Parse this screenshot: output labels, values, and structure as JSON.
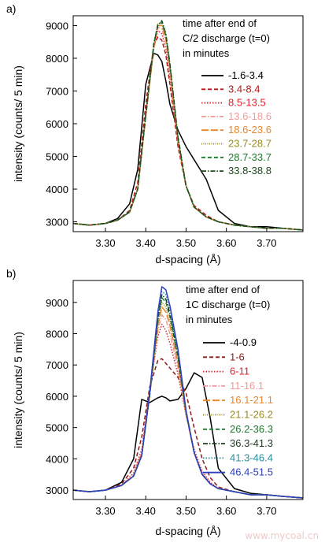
{
  "watermark": "www.mycoal.cn",
  "chart_data": [
    {
      "panel_label": "a)",
      "type": "line",
      "xlabel": "d-spacing (Å)",
      "ylabel": "intensity (counts/ 5 min)",
      "xlim": [
        3.22,
        3.79
      ],
      "ylim": [
        2700,
        9300
      ],
      "xticks": [
        3.3,
        3.4,
        3.5,
        3.6,
        3.7
      ],
      "xtick_labels": [
        "3.30",
        "3.40",
        "3.50",
        "3.60",
        "3.70"
      ],
      "yticks": [
        3000,
        4000,
        5000,
        6000,
        7000,
        8000,
        9000
      ],
      "ytick_labels": [
        "3000",
        "4000",
        "5000",
        "6000",
        "7000",
        "8000",
        "9000"
      ],
      "legend_title": [
        "time after end of",
        "C/2 discharge (t=0)",
        "in minutes"
      ],
      "legend_position": "right",
      "grid": false,
      "x": [
        3.22,
        3.26,
        3.3,
        3.33,
        3.36,
        3.38,
        3.4,
        3.42,
        3.43,
        3.44,
        3.45,
        3.46,
        3.48,
        3.5,
        3.52,
        3.55,
        3.58,
        3.62,
        3.66,
        3.7,
        3.74,
        3.79
      ],
      "series": [
        {
          "name": "-1.6-3.4",
          "color": "#000000",
          "dash": "solid",
          "values": [
            2950,
            2900,
            2950,
            3100,
            3550,
            4600,
            7200,
            8150,
            8100,
            7900,
            7300,
            6600,
            5800,
            5300,
            4900,
            4300,
            3350,
            2950,
            2850,
            2850,
            2800,
            2750
          ]
        },
        {
          "name": "3.4-8.4",
          "color": "#b01a1a",
          "dash": "dash",
          "values": [
            2950,
            2900,
            2950,
            3050,
            3350,
            4200,
            6600,
            8400,
            8650,
            8550,
            8100,
            7200,
            5300,
            4100,
            3500,
            3200,
            3000,
            2900,
            2850,
            2800,
            2800,
            2750
          ]
        },
        {
          "name": "8.5-13.5",
          "color": "#e0202a",
          "dash": "dot",
          "values": [
            2950,
            2900,
            2950,
            3050,
            3300,
            4000,
            6300,
            8300,
            8850,
            8750,
            8300,
            7400,
            5400,
            4100,
            3450,
            3150,
            3000,
            2900,
            2850,
            2800,
            2800,
            2750
          ]
        },
        {
          "name": "13.6-18.6",
          "color": "#f29a9a",
          "dash": "dashdot",
          "values": [
            2950,
            2900,
            2950,
            3050,
            3300,
            4000,
            6200,
            8300,
            8950,
            8900,
            8500,
            7600,
            5500,
            4100,
            3450,
            3150,
            3000,
            2900,
            2850,
            2800,
            2800,
            2750
          ]
        },
        {
          "name": "18.6-23.6",
          "color": "#e8862a",
          "dash": "longdash",
          "values": [
            2950,
            2900,
            2950,
            3050,
            3300,
            4000,
            6200,
            8350,
            9000,
            9000,
            8600,
            7700,
            5500,
            4100,
            3450,
            3150,
            3000,
            2900,
            2850,
            2800,
            2800,
            2750
          ]
        },
        {
          "name": "23.7-28.7",
          "color": "#9a8a1e",
          "dash": "finedot",
          "values": [
            2950,
            2900,
            2950,
            3050,
            3300,
            4000,
            6250,
            8400,
            9050,
            9050,
            8650,
            7750,
            5550,
            4100,
            3450,
            3150,
            3000,
            2900,
            2850,
            2800,
            2800,
            2750
          ]
        },
        {
          "name": "28.7-33.7",
          "color": "#1e7a2e",
          "dash": "dash",
          "values": [
            2950,
            2900,
            2950,
            3050,
            3300,
            4000,
            6250,
            8450,
            9050,
            9100,
            8700,
            7800,
            5550,
            4100,
            3450,
            3150,
            3000,
            2900,
            2850,
            2800,
            2800,
            2750
          ]
        },
        {
          "name": "33.8-38.8",
          "color": "#1e4a1e",
          "dash": "dashdot",
          "values": [
            2950,
            2900,
            2950,
            3050,
            3300,
            4000,
            6250,
            8450,
            9000,
            9150,
            8750,
            7850,
            5600,
            4100,
            3450,
            3150,
            3000,
            2900,
            2850,
            2800,
            2800,
            2750
          ]
        }
      ]
    },
    {
      "panel_label": "b)",
      "type": "line",
      "xlabel": "d-spacing (Å)",
      "ylabel": "intensity (counts/ 5 min)",
      "xlim": [
        3.22,
        3.79
      ],
      "ylim": [
        2700,
        9700
      ],
      "xticks": [
        3.3,
        3.4,
        3.5,
        3.6,
        3.7
      ],
      "xtick_labels": [
        "3.30",
        "3.40",
        "3.50",
        "3.60",
        "3.70"
      ],
      "yticks": [
        3000,
        4000,
        5000,
        6000,
        7000,
        8000,
        9000
      ],
      "ytick_labels": [
        "3000",
        "4000",
        "5000",
        "6000",
        "7000",
        "8000",
        "9000"
      ],
      "legend_title": [
        "time after end of",
        "1C discharge (t=0)",
        "in minutes"
      ],
      "legend_position": "right",
      "grid": false,
      "x": [
        3.22,
        3.26,
        3.3,
        3.34,
        3.37,
        3.39,
        3.41,
        3.43,
        3.44,
        3.45,
        3.46,
        3.48,
        3.5,
        3.52,
        3.54,
        3.56,
        3.58,
        3.62,
        3.66,
        3.7,
        3.74,
        3.79
      ],
      "series": [
        {
          "name": "-4-0.9",
          "color": "#000000",
          "dash": "solid",
          "values": [
            3000,
            2950,
            3000,
            3250,
            4000,
            5900,
            5800,
            5950,
            6000,
            5950,
            5850,
            5900,
            6250,
            6750,
            6600,
            5300,
            3700,
            3050,
            2900,
            2850,
            2800,
            2750
          ]
        },
        {
          "name": "1-6",
          "color": "#8a1c1c",
          "dash": "dash",
          "values": [
            3000,
            2950,
            3000,
            3200,
            3700,
            4700,
            6300,
            7150,
            7200,
            7050,
            6900,
            6600,
            6100,
            5000,
            4000,
            3400,
            3100,
            2950,
            2850,
            2850,
            2800,
            2750
          ]
        },
        {
          "name": "6-11",
          "color": "#e0202a",
          "dash": "dot",
          "values": [
            3000,
            2950,
            3000,
            3150,
            3550,
            4300,
            6200,
            7900,
            8300,
            8100,
            7700,
            6700,
            5400,
            4300,
            3600,
            3250,
            3050,
            2950,
            2850,
            2850,
            2800,
            2750
          ]
        },
        {
          "name": "11-16.1",
          "color": "#f29a9a",
          "dash": "dashdot",
          "values": [
            3000,
            2950,
            3000,
            3150,
            3500,
            4200,
            6100,
            8100,
            8600,
            8450,
            8000,
            6900,
            5400,
            4200,
            3550,
            3200,
            3050,
            2950,
            2850,
            2850,
            2800,
            2750
          ]
        },
        {
          "name": "16.1-21.1",
          "color": "#e8862a",
          "dash": "longdash",
          "values": [
            3000,
            2950,
            3000,
            3150,
            3450,
            4150,
            6050,
            8250,
            8850,
            8700,
            8250,
            7050,
            5450,
            4200,
            3500,
            3200,
            3050,
            2950,
            2850,
            2850,
            2800,
            2750
          ]
        },
        {
          "name": "21.1-26.2",
          "color": "#9a8a1e",
          "dash": "finedot",
          "values": [
            3000,
            2950,
            3000,
            3150,
            3450,
            4150,
            6050,
            8350,
            9000,
            8850,
            8400,
            7150,
            5500,
            4200,
            3500,
            3200,
            3050,
            2950,
            2850,
            2850,
            2800,
            2750
          ]
        },
        {
          "name": "26.2-36.3",
          "color": "#1e7a2e",
          "dash": "dash",
          "values": [
            3000,
            2950,
            3000,
            3150,
            3450,
            4100,
            6050,
            8450,
            9150,
            9000,
            8550,
            7250,
            5500,
            4200,
            3500,
            3200,
            3050,
            2950,
            2850,
            2850,
            2800,
            2750
          ]
        },
        {
          "name": "36.3-41.3",
          "color": "#1e3a1e",
          "dash": "dashdot",
          "values": [
            3000,
            2950,
            3000,
            3150,
            3450,
            4100,
            6050,
            8500,
            9250,
            9100,
            8650,
            7300,
            5500,
            4200,
            3500,
            3200,
            3050,
            2950,
            2850,
            2850,
            2800,
            2750
          ]
        },
        {
          "name": "41.3-46.4",
          "color": "#2a8f9a",
          "dash": "dot",
          "values": [
            3000,
            2950,
            3000,
            3150,
            3450,
            4100,
            6100,
            8600,
            9350,
            9250,
            8750,
            7400,
            5500,
            4200,
            3500,
            3200,
            3050,
            2950,
            2850,
            2850,
            2800,
            2750
          ]
        },
        {
          "name": "46.4-51.5",
          "color": "#2c3fbf",
          "dash": "solid",
          "values": [
            3000,
            2950,
            3000,
            3150,
            3450,
            4100,
            6150,
            8700,
            9500,
            9400,
            8900,
            7500,
            5550,
            4200,
            3500,
            3200,
            3050,
            2950,
            2850,
            2850,
            2800,
            2750
          ]
        }
      ]
    }
  ]
}
